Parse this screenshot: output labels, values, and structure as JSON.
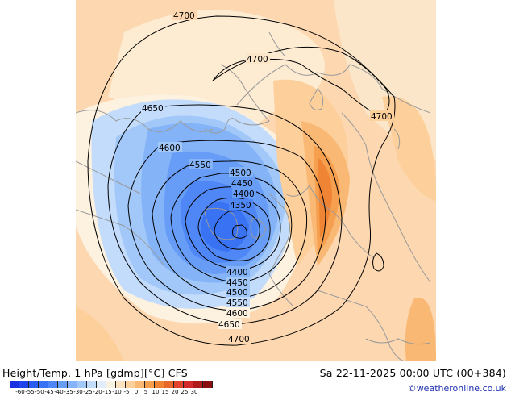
{
  "header": {
    "left_title": "Height/Temp. 1 hPa [gdmp][°C] CFS",
    "right_title": "Sa 22-11-2025 00:00 UTC (00+384)"
  },
  "copyright": "©weatheronline.co.uk",
  "colorbar": {
    "colors": [
      "#1a2fe0",
      "#1f45ea",
      "#2a5cf0",
      "#3a72f4",
      "#4f88f6",
      "#689df7",
      "#84b3f8",
      "#a2c8f9",
      "#c3dcfb",
      "#e2eefc",
      "#fbf3e2",
      "#fde2c0",
      "#fccf9b",
      "#f9b873",
      "#f59f4f",
      "#ef8434",
      "#e8672a",
      "#e0442a",
      "#d12b2b",
      "#b01c1c",
      "#8a1010"
    ],
    "labels": [
      "-60",
      "-55",
      "-50",
      "-45",
      "-40",
      "-35",
      "-30",
      "-25",
      "-20",
      "-15",
      "-10",
      "-5",
      "0",
      "5",
      "10",
      "15",
      "20",
      "25",
      "30"
    ]
  },
  "contours": [
    {
      "label": "4700",
      "id": "c4700"
    },
    {
      "label": "4700",
      "id": "c4700-inner"
    },
    {
      "label": "4700",
      "id": "c4700-east"
    },
    {
      "label": "4650",
      "id": "c4650"
    },
    {
      "label": "4600",
      "id": "c4600"
    },
    {
      "label": "4550",
      "id": "c4550"
    },
    {
      "label": "4500",
      "id": "c4500"
    },
    {
      "label": "4450",
      "id": "c4450"
    },
    {
      "label": "4400",
      "id": "c4400"
    },
    {
      "label": "4350",
      "id": "c4350"
    },
    {
      "label": "4400",
      "id": "c4400-s"
    },
    {
      "label": "4450",
      "id": "c4450-s"
    },
    {
      "label": "4500",
      "id": "c4500-s"
    },
    {
      "label": "4550",
      "id": "c4550-s"
    },
    {
      "label": "4600",
      "id": "c4600-s"
    },
    {
      "label": "4650",
      "id": "c4650-s"
    },
    {
      "label": "4700",
      "id": "c4700-s"
    }
  ]
}
